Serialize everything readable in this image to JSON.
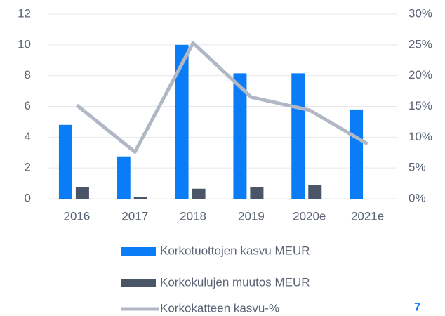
{
  "chart_data": {
    "type": "bar",
    "categories": [
      "2016",
      "2017",
      "2018",
      "2019",
      "2020e",
      "2021e"
    ],
    "series": [
      {
        "name": "Korkotuottojen kasvu MEUR",
        "type": "bar",
        "color": "#0a7cf5",
        "values": [
          4.8,
          2.75,
          10.0,
          8.15,
          8.15,
          5.8
        ]
      },
      {
        "name": "Korkokulujen muutos MEUR",
        "type": "bar",
        "color": "#4a5568",
        "values": [
          0.75,
          0.1,
          0.65,
          0.75,
          0.9,
          0
        ]
      },
      {
        "name": "Korkokatteen kasvu-%",
        "type": "line",
        "axis": "y2",
        "color": "#b2b7c6",
        "values": [
          15.2,
          7.6,
          25.3,
          16.5,
          14.4,
          8.9
        ]
      }
    ],
    "ylim": [
      0,
      12
    ],
    "yticks": [
      0,
      2,
      4,
      6,
      8,
      10,
      12
    ],
    "y2lim": [
      0,
      30
    ],
    "y2ticks": [
      {
        "value": 0,
        "label": "0%"
      },
      {
        "value": 5,
        "label": "5%"
      },
      {
        "value": 10,
        "label": "10%"
      },
      {
        "value": 15,
        "label": "15%"
      },
      {
        "value": 20,
        "label": "20%"
      },
      {
        "value": 25,
        "label": "25%"
      },
      {
        "value": 30,
        "label": "30%"
      }
    ],
    "grid": true,
    "legend": "bottom"
  },
  "page_number": "7"
}
